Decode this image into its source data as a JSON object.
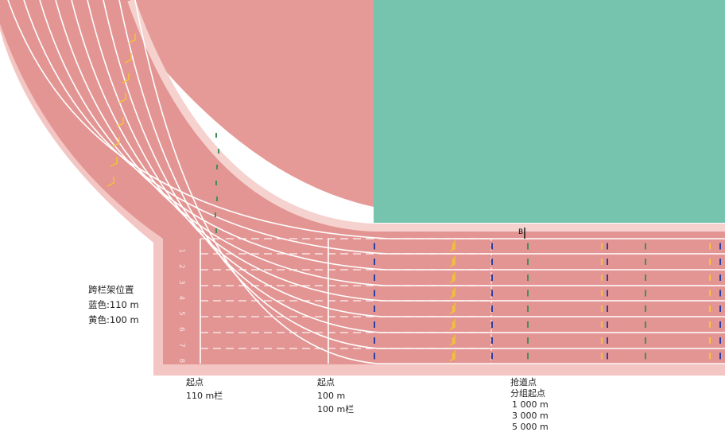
{
  "legend": {
    "title": "跨栏架位置",
    "blue": "蓝色:110 m",
    "yellow": "黄色:100 m"
  },
  "lane_numbers": [
    "1",
    "2",
    "3",
    "4",
    "5",
    "6",
    "7",
    "8"
  ],
  "point_b": "B",
  "markers": {
    "start_110h": [
      "起点",
      "110 m栏"
    ],
    "start_100": [
      "起点",
      "100 m",
      "100 m栏"
    ],
    "break_point": [
      "抢道点",
      "分组起点",
      "1 000 m",
      "3 000 m",
      "5 000 m"
    ]
  },
  "colors": {
    "track": "#e39593",
    "track_border": "#f3c6c3",
    "infield_green": "#76c4ae",
    "infield_red": "#e59a97",
    "lane_line": "#ffffff",
    "hurdle_blue": "#2b3f9e",
    "hurdle_yellow": "#f2c430",
    "hurdle_green": "#3f8f5a"
  }
}
